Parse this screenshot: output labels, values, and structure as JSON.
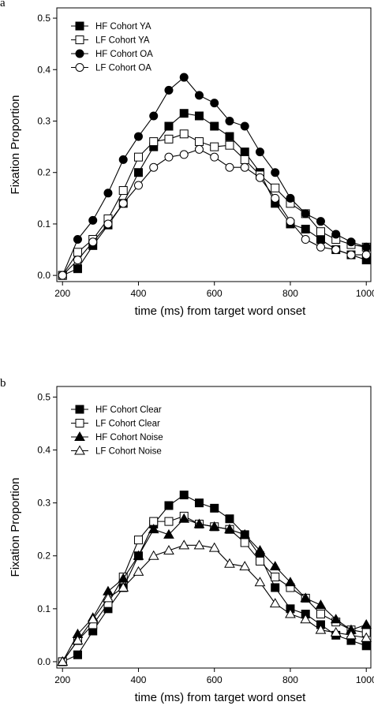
{
  "chart_data": [
    {
      "panel_label": "a",
      "type": "line",
      "xlabel": "time (ms) from target word onset",
      "ylabel": "Fixation Proportion",
      "xlim": [
        200,
        1000
      ],
      "ylim": [
        0,
        0.5
      ],
      "xticks": [
        200,
        400,
        600,
        800,
        1000
      ],
      "yticks": [
        0.0,
        0.1,
        0.2,
        0.3,
        0.4,
        0.5
      ],
      "x": [
        200,
        240,
        280,
        320,
        360,
        400,
        440,
        480,
        520,
        560,
        600,
        640,
        680,
        720,
        760,
        800,
        840,
        880,
        920,
        960,
        1000
      ],
      "legend_position": "top-left",
      "series": [
        {
          "name": "HF Cohort YA",
          "marker": "filled-square",
          "values": [
            0.0,
            0.013,
            0.058,
            0.098,
            0.14,
            0.2,
            0.25,
            0.29,
            0.315,
            0.31,
            0.29,
            0.27,
            0.24,
            0.2,
            0.14,
            0.1,
            0.09,
            0.07,
            0.05,
            0.04,
            0.03
          ]
        },
        {
          "name": "LF Cohort YA",
          "marker": "open-square",
          "values": [
            0.0,
            0.045,
            0.07,
            0.11,
            0.165,
            0.23,
            0.26,
            0.265,
            0.275,
            0.26,
            0.25,
            0.253,
            0.225,
            0.195,
            0.17,
            0.14,
            0.12,
            0.085,
            0.07,
            0.06,
            0.055
          ]
        },
        {
          "name": "HF Cohort OA",
          "marker": "filled-circle",
          "values": [
            0.0,
            0.07,
            0.107,
            0.16,
            0.225,
            0.27,
            0.31,
            0.36,
            0.385,
            0.35,
            0.335,
            0.3,
            0.29,
            0.24,
            0.2,
            0.15,
            0.12,
            0.105,
            0.08,
            0.065,
            0.055
          ]
        },
        {
          "name": "LF Cohort OA",
          "marker": "open-circle",
          "values": [
            0.0,
            0.03,
            0.065,
            0.1,
            0.14,
            0.175,
            0.21,
            0.23,
            0.235,
            0.245,
            0.23,
            0.21,
            0.21,
            0.19,
            0.15,
            0.105,
            0.07,
            0.055,
            0.05,
            0.04,
            0.04
          ]
        }
      ]
    },
    {
      "panel_label": "b",
      "type": "line",
      "xlabel": "time (ms) from target word onset",
      "ylabel": "Fixation Proportion",
      "xlim": [
        200,
        1000
      ],
      "ylim": [
        0,
        0.5
      ],
      "xticks": [
        200,
        400,
        600,
        800,
        1000
      ],
      "yticks": [
        0.0,
        0.1,
        0.2,
        0.3,
        0.4,
        0.5
      ],
      "x": [
        200,
        240,
        280,
        320,
        360,
        400,
        440,
        480,
        520,
        560,
        600,
        640,
        680,
        720,
        760,
        800,
        840,
        880,
        920,
        960,
        1000
      ],
      "legend_position": "top-left",
      "series": [
        {
          "name": "HF Cohort Clear",
          "marker": "filled-square",
          "values": [
            0.0,
            0.013,
            0.058,
            0.1,
            0.14,
            0.2,
            0.26,
            0.295,
            0.315,
            0.3,
            0.29,
            0.27,
            0.24,
            0.2,
            0.14,
            0.1,
            0.09,
            0.07,
            0.05,
            0.04,
            0.03
          ]
        },
        {
          "name": "LF Cohort Clear",
          "marker": "open-square",
          "values": [
            0.0,
            0.04,
            0.07,
            0.11,
            0.16,
            0.23,
            0.265,
            0.265,
            0.275,
            0.26,
            0.255,
            0.25,
            0.225,
            0.19,
            0.16,
            0.14,
            0.12,
            0.09,
            0.075,
            0.06,
            0.055
          ]
        },
        {
          "name": "HF Cohort Noise",
          "marker": "filled-triangle",
          "values": [
            0.0,
            0.052,
            0.083,
            0.133,
            0.157,
            0.2,
            0.25,
            0.24,
            0.27,
            0.26,
            0.255,
            0.25,
            0.24,
            0.21,
            0.18,
            0.15,
            0.12,
            0.107,
            0.08,
            0.06,
            0.07
          ]
        },
        {
          "name": "LF Cohort Noise",
          "marker": "open-triangle",
          "values": [
            0.0,
            0.04,
            0.08,
            0.12,
            0.14,
            0.17,
            0.2,
            0.21,
            0.22,
            0.22,
            0.215,
            0.185,
            0.18,
            0.15,
            0.11,
            0.09,
            0.08,
            0.06,
            0.055,
            0.05,
            0.045
          ]
        }
      ]
    }
  ]
}
